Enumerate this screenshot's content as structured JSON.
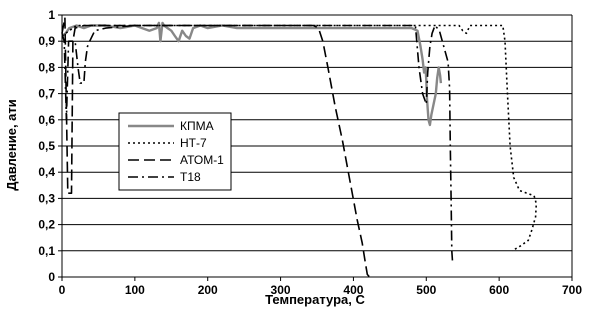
{
  "chart_data": {
    "type": "line",
    "xlabel": "Температура, С",
    "ylabel": "Давление, ати",
    "xlim": [
      0,
      700
    ],
    "ylim": [
      0,
      1
    ],
    "xticks": [
      "0",
      "100",
      "200",
      "300",
      "400",
      "500",
      "600",
      "700"
    ],
    "yticks": [
      "0",
      "0,1",
      "0,2",
      "0,3",
      "0,4",
      "0,5",
      "0,6",
      "0,7",
      "0,8",
      "0,9",
      "1"
    ],
    "grid": "horizontal",
    "legend_position": "left-center",
    "series": [
      {
        "name": "КПМА",
        "style": "gray-thick",
        "points": [
          [
            0,
            0.92
          ],
          [
            5,
            0.93
          ],
          [
            10,
            0.95
          ],
          [
            20,
            0.96
          ],
          [
            30,
            0.95
          ],
          [
            40,
            0.96
          ],
          [
            60,
            0.96
          ],
          [
            80,
            0.95
          ],
          [
            100,
            0.96
          ],
          [
            110,
            0.95
          ],
          [
            120,
            0.94
          ],
          [
            130,
            0.95
          ],
          [
            133,
            0.97
          ],
          [
            135,
            0.9
          ],
          [
            138,
            0.97
          ],
          [
            140,
            0.96
          ],
          [
            145,
            0.95
          ],
          [
            150,
            0.94
          ],
          [
            155,
            0.92
          ],
          [
            160,
            0.9
          ],
          [
            165,
            0.94
          ],
          [
            170,
            0.92
          ],
          [
            175,
            0.91
          ],
          [
            180,
            0.95
          ],
          [
            190,
            0.96
          ],
          [
            200,
            0.95
          ],
          [
            220,
            0.96
          ],
          [
            240,
            0.95
          ],
          [
            260,
            0.95
          ],
          [
            300,
            0.95
          ],
          [
            340,
            0.95
          ],
          [
            380,
            0.95
          ],
          [
            420,
            0.95
          ],
          [
            460,
            0.95
          ],
          [
            480,
            0.95
          ],
          [
            488,
            0.94
          ],
          [
            492,
            0.88
          ],
          [
            495,
            0.83
          ],
          [
            497,
            0.78
          ],
          [
            499,
            0.8
          ],
          [
            500,
            0.75
          ],
          [
            501,
            0.68
          ],
          [
            503,
            0.6
          ],
          [
            505,
            0.58
          ],
          [
            507,
            0.62
          ],
          [
            510,
            0.66
          ],
          [
            513,
            0.7
          ],
          [
            515,
            0.76
          ],
          [
            517,
            0.8
          ],
          [
            519,
            0.77
          ],
          [
            520,
            0.74
          ]
        ]
      },
      {
        "name": "НТ-7",
        "style": "dotted",
        "points": [
          [
            0,
            0.92
          ],
          [
            5,
            0.93
          ],
          [
            20,
            0.96
          ],
          [
            100,
            0.96
          ],
          [
            200,
            0.96
          ],
          [
            300,
            0.96
          ],
          [
            400,
            0.96
          ],
          [
            500,
            0.96
          ],
          [
            545,
            0.96
          ],
          [
            550,
            0.94
          ],
          [
            555,
            0.93
          ],
          [
            560,
            0.96
          ],
          [
            600,
            0.96
          ],
          [
            605,
            0.96
          ],
          [
            608,
            0.9
          ],
          [
            611,
            0.72
          ],
          [
            615,
            0.5
          ],
          [
            620,
            0.38
          ],
          [
            628,
            0.33
          ],
          [
            638,
            0.32
          ],
          [
            648,
            0.31
          ],
          [
            651,
            0.28
          ],
          [
            650,
            0.23
          ],
          [
            645,
            0.18
          ],
          [
            640,
            0.14
          ],
          [
            630,
            0.12
          ],
          [
            618,
            0.1
          ]
        ]
      },
      {
        "name": "АТОМ-1",
        "style": "long-dash",
        "points": [
          [
            0,
            0.93
          ],
          [
            4,
            0.99
          ],
          [
            8,
            0.32
          ],
          [
            13,
            0.32
          ],
          [
            15,
            0.9
          ],
          [
            18,
            0.95
          ],
          [
            30,
            0.96
          ],
          [
            60,
            0.96
          ],
          [
            100,
            0.96
          ],
          [
            200,
            0.96
          ],
          [
            300,
            0.96
          ],
          [
            345,
            0.96
          ],
          [
            352,
            0.95
          ],
          [
            358,
            0.9
          ],
          [
            365,
            0.8
          ],
          [
            375,
            0.65
          ],
          [
            385,
            0.52
          ],
          [
            395,
            0.37
          ],
          [
            405,
            0.22
          ],
          [
            412,
            0.13
          ],
          [
            416,
            0.06
          ],
          [
            419,
            0.01
          ],
          [
            422,
            0.0
          ]
        ]
      },
      {
        "name": "Т18",
        "style": "dash-dot",
        "points": [
          [
            0,
            0.93
          ],
          [
            3,
            0.9
          ],
          [
            6,
            0.6
          ],
          [
            9,
            0.9
          ],
          [
            18,
            0.9
          ],
          [
            22,
            0.8
          ],
          [
            25,
            0.74
          ],
          [
            30,
            0.74
          ],
          [
            32,
            0.82
          ],
          [
            35,
            0.88
          ],
          [
            38,
            0.9
          ],
          [
            45,
            0.94
          ],
          [
            60,
            0.95
          ],
          [
            100,
            0.96
          ],
          [
            200,
            0.96
          ],
          [
            300,
            0.96
          ],
          [
            400,
            0.96
          ],
          [
            480,
            0.96
          ],
          [
            485,
            0.96
          ],
          [
            490,
            0.8
          ],
          [
            495,
            0.7
          ],
          [
            500,
            0.66
          ],
          [
            502,
            0.78
          ],
          [
            505,
            0.88
          ],
          [
            508,
            0.93
          ],
          [
            512,
            0.96
          ],
          [
            518,
            0.94
          ],
          [
            522,
            0.9
          ],
          [
            526,
            0.86
          ],
          [
            530,
            0.82
          ],
          [
            532,
            0.72
          ],
          [
            533,
            0.5
          ],
          [
            534,
            0.3
          ],
          [
            535,
            0.1
          ],
          [
            536,
            0.06
          ]
        ]
      }
    ]
  }
}
